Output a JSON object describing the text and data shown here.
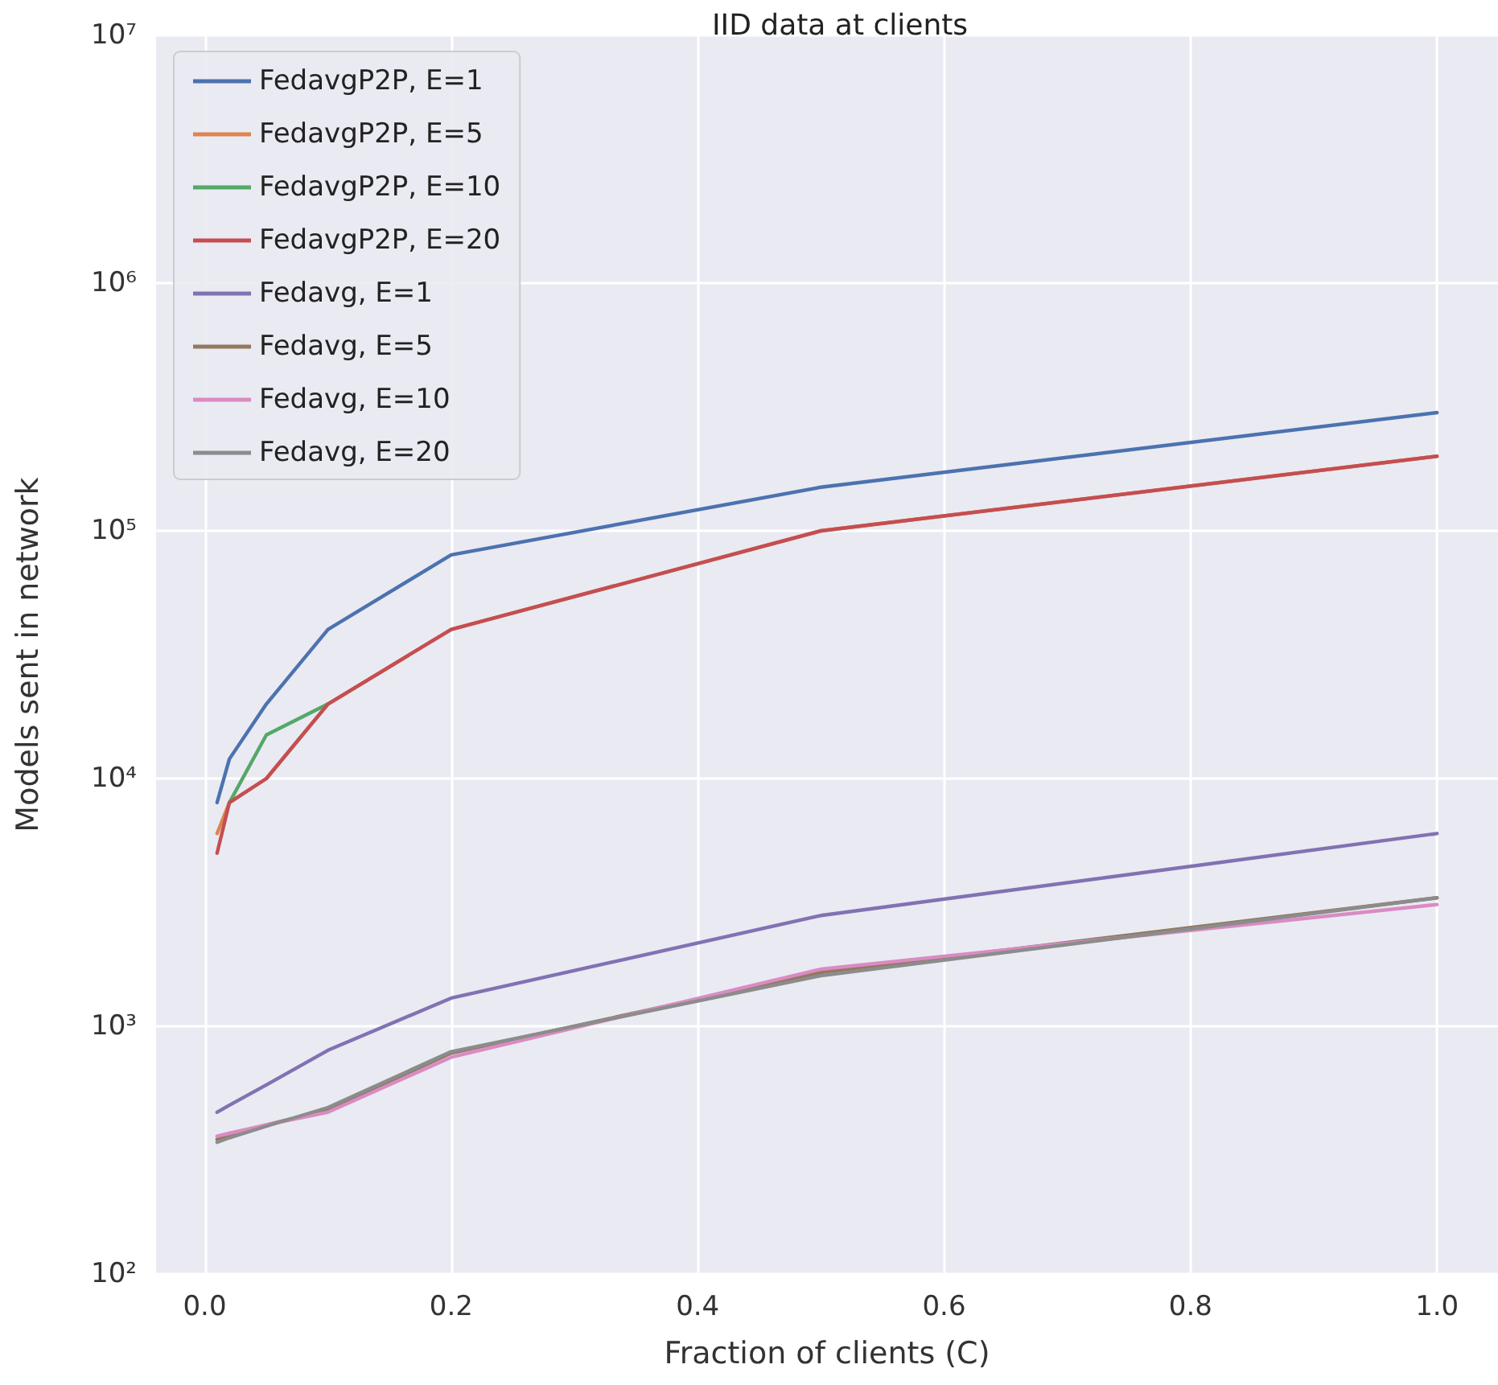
{
  "chart_data": {
    "type": "line",
    "title": "IID data at clients",
    "xlabel": "Fraction of clients (C)",
    "ylabel": "Models sent in network",
    "x": [
      0.01,
      0.02,
      0.05,
      0.1,
      0.2,
      0.5,
      1.0
    ],
    "series": [
      {
        "name": "FedavgP2P, E=1",
        "color": "#4c72b0",
        "values": [
          8000,
          12000,
          20000,
          40000,
          80000,
          150000,
          300000
        ]
      },
      {
        "name": "FedavgP2P, E=5",
        "color": "#dd8452",
        "values": [
          6000,
          8000,
          10000,
          20000,
          40000,
          100000,
          200000
        ]
      },
      {
        "name": "FedavgP2P, E=10",
        "color": "#55a868",
        "values": [
          null,
          8000,
          15000,
          20000,
          null,
          null,
          null
        ]
      },
      {
        "name": "FedavgP2P, E=20",
        "color": "#c44e52",
        "values": [
          5000,
          8000,
          10000,
          20000,
          40000,
          100000,
          200000
        ]
      },
      {
        "name": "Fedavg, E=1",
        "color": "#8172b3",
        "values": [
          450,
          480,
          580,
          800,
          1300,
          2800,
          6000
        ]
      },
      {
        "name": "Fedavg, E=5",
        "color": "#937860",
        "values": [
          350,
          360,
          400,
          460,
          780,
          1650,
          3300
        ]
      },
      {
        "name": "Fedavg, E=10",
        "color": "#da8bc3",
        "values": [
          360,
          370,
          400,
          450,
          750,
          1700,
          3100
        ]
      },
      {
        "name": "Fedavg, E=20",
        "color": "#8c8c8c",
        "values": [
          340,
          355,
          395,
          470,
          790,
          1600,
          3300
        ]
      }
    ],
    "xlim": [
      -0.0395,
      1.0495
    ],
    "xticks": [
      {
        "value": 0,
        "label": "0.0"
      },
      {
        "value": 0.2,
        "label": "0.2"
      },
      {
        "value": 0.4,
        "label": "0.4"
      },
      {
        "value": 0.6,
        "label": "0.6"
      },
      {
        "value": 0.8,
        "label": "0.8"
      },
      {
        "value": 1.0,
        "label": "1.0"
      }
    ],
    "ylim": [
      100,
      10000000
    ],
    "yticks": [
      {
        "value": 100,
        "label": "10²"
      },
      {
        "value": 1000,
        "label": "10³"
      },
      {
        "value": 10000,
        "label": "10⁴"
      },
      {
        "value": 100000,
        "label": "10⁵"
      },
      {
        "value": 1000000,
        "label": "10⁶"
      },
      {
        "value": 10000000,
        "label": "10⁷"
      }
    ],
    "log": "y",
    "grid": true,
    "legend": "top left",
    "marker": "none",
    "line_style": "solid"
  }
}
